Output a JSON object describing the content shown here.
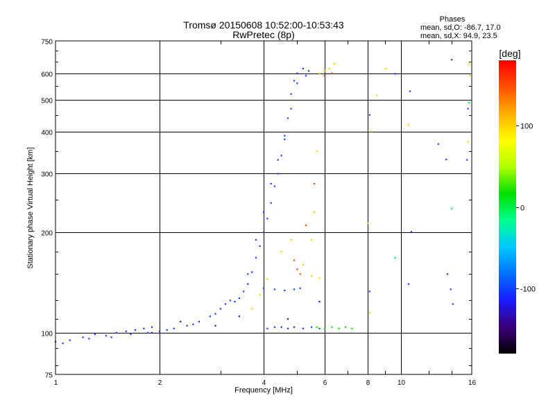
{
  "header": {
    "title_line1": "Tromsø 20150608 10:52:00-10:53:43",
    "title_line2": "RwPretec (8p)",
    "stats_heading": "Phases",
    "stats_line1": "mean, sd,O: -86.7, 17.0",
    "stats_line2": "mean, sd,X: 94.9, 23.5"
  },
  "colorbar": {
    "label": "[deg]",
    "range": [
      -180,
      180
    ],
    "ticks": [
      {
        "value": 100,
        "label": "100"
      },
      {
        "value": 0,
        "label": "0"
      },
      {
        "value": -100,
        "label": "-100"
      }
    ],
    "colors": [
      "#000000",
      "#3a007a",
      "#1a1aff",
      "#0070ff",
      "#00c8ff",
      "#00ff90",
      "#00e000",
      "#b0ff00",
      "#ffff00",
      "#ffb000",
      "#ff5000",
      "#ff0000"
    ]
  },
  "chart_data": {
    "type": "scatter",
    "title": "Tromsø 20150608 10:52:00-10:53:43",
    "subtitle": "RwPretec (8p)",
    "xlabel": "Frequency [MHz]",
    "ylabel": "Stationary phase Virtual Height [km]",
    "xscale": "log",
    "yscale": "log",
    "xlim": [
      1,
      16
    ],
    "ylim": [
      75,
      750
    ],
    "x_ticks": [
      1,
      2,
      4,
      6,
      8,
      10,
      16
    ],
    "x_tick_labels": [
      "1",
      "2",
      "4",
      "6",
      "8",
      "10",
      "16"
    ],
    "y_ticks": [
      75,
      100,
      200,
      300,
      400,
      500,
      600,
      750
    ],
    "y_tick_labels": [
      "75",
      "100",
      "200",
      "300",
      "400",
      "500",
      "600",
      "750"
    ],
    "grid": true,
    "color_by": "phase",
    "traces": [
      {
        "name": "",
        "phase": -100,
        "points": [
          [
            1.0,
            94
          ],
          [
            1.1,
            95
          ],
          [
            1.2,
            97
          ],
          [
            1.3,
            99
          ],
          [
            1.4,
            98
          ],
          [
            1.5,
            100
          ],
          [
            1.6,
            101
          ],
          [
            1.7,
            102
          ],
          [
            1.8,
            103
          ],
          [
            1.9,
            104
          ],
          [
            2.0,
            101
          ],
          [
            2.2,
            103
          ],
          [
            2.4,
            105
          ],
          [
            2.6,
            108
          ],
          [
            2.8,
            112
          ],
          [
            3.0,
            118
          ],
          [
            3.1,
            122
          ],
          [
            3.2,
            125
          ],
          [
            3.4,
            127
          ],
          [
            3.5,
            133
          ],
          [
            3.6,
            140
          ],
          [
            3.7,
            152
          ],
          [
            3.8,
            168
          ],
          [
            3.9,
            182
          ],
          [
            4.0,
            200
          ],
          [
            4.1,
            220
          ],
          [
            4.2,
            245
          ],
          [
            4.3,
            275
          ],
          [
            4.4,
            300
          ],
          [
            4.5,
            340
          ],
          [
            4.6,
            390
          ],
          [
            4.7,
            440
          ],
          [
            4.8,
            520
          ],
          [
            4.9,
            570
          ],
          [
            5.0,
            600
          ],
          [
            5.2,
            620
          ],
          [
            5.4,
            610
          ]
        ]
      },
      {
        "name": "",
        "phase": -100,
        "points": [
          [
            1.05,
            93
          ],
          [
            1.25,
            96
          ],
          [
            1.45,
            97
          ],
          [
            1.65,
            99
          ],
          [
            1.85,
            100
          ],
          [
            2.1,
            102
          ],
          [
            2.5,
            106
          ],
          [
            2.9,
            114
          ],
          [
            3.3,
            124
          ],
          [
            3.6,
            150
          ],
          [
            3.8,
            190
          ],
          [
            4.0,
            230
          ],
          [
            4.2,
            280
          ],
          [
            4.4,
            330
          ],
          [
            4.6,
            380
          ],
          [
            4.8,
            470
          ],
          [
            5.0,
            560
          ],
          [
            5.3,
            590
          ]
        ]
      },
      {
        "name": "",
        "phase": -100,
        "points": [
          [
            4.1,
            103
          ],
          [
            4.3,
            104
          ],
          [
            4.5,
            104
          ],
          [
            4.7,
            103
          ],
          [
            4.9,
            104
          ],
          [
            5.2,
            103
          ],
          [
            5.5,
            104
          ],
          [
            5.8,
            103
          ]
        ]
      },
      {
        "name": "",
        "phase": -100,
        "points": [
          [
            4.0,
            136
          ],
          [
            4.3,
            135
          ],
          [
            4.6,
            134
          ],
          [
            4.9,
            135
          ],
          [
            5.1,
            136
          ]
        ]
      },
      {
        "name": "",
        "phase": 100,
        "points": [
          [
            3.7,
            118
          ],
          [
            3.9,
            130
          ],
          [
            4.1,
            145
          ],
          [
            4.5,
            175
          ],
          [
            4.8,
            190
          ],
          [
            5.2,
            160
          ],
          [
            5.5,
            148
          ],
          [
            5.8,
            146
          ],
          [
            5.5,
            190
          ],
          [
            5.6,
            230
          ],
          [
            5.7,
            350
          ],
          [
            5.8,
            600
          ],
          [
            6.0,
            610
          ],
          [
            6.2,
            620
          ],
          [
            6.4,
            640
          ]
        ]
      },
      {
        "name": "",
        "phase": 150,
        "points": [
          [
            4.9,
            165
          ],
          [
            5.1,
            150
          ],
          [
            5.0,
            155
          ],
          [
            5.3,
            210
          ],
          [
            5.6,
            280
          ],
          [
            6.0,
            590
          ],
          [
            6.3,
            600
          ]
        ]
      },
      {
        "name": "",
        "phase": 20,
        "points": [
          [
            5.7,
            104
          ],
          [
            6.0,
            103
          ],
          [
            6.3,
            104
          ],
          [
            6.6,
            103
          ],
          [
            6.9,
            104
          ],
          [
            7.2,
            103
          ]
        ]
      },
      {
        "name": "",
        "phase": 100,
        "points": [
          [
            8.1,
            115
          ],
          [
            8.0,
            213
          ],
          [
            8.2,
            402
          ],
          [
            8.5,
            515
          ],
          [
            9.0,
            620
          ],
          [
            10.5,
            420
          ],
          [
            15.6,
            374
          ],
          [
            15.8,
            590
          ],
          [
            15.7,
            640
          ]
        ]
      },
      {
        "name": "",
        "phase": -100,
        "points": [
          [
            8.1,
            133
          ],
          [
            8.1,
            450
          ],
          [
            9.6,
            598
          ],
          [
            10.6,
            530
          ],
          [
            10.5,
            140
          ],
          [
            10.7,
            201
          ],
          [
            12.8,
            368
          ],
          [
            13.5,
            331
          ],
          [
            14.0,
            659
          ],
          [
            13.6,
            150
          ],
          [
            13.9,
            135
          ],
          [
            14.1,
            122
          ],
          [
            15.6,
            470
          ],
          [
            15.5,
            330
          ]
        ]
      },
      {
        "name": "",
        "phase": 0,
        "points": [
          [
            14.0,
            236
          ],
          [
            15.7,
            490
          ],
          [
            9.6,
            168
          ]
        ]
      },
      {
        "name": "",
        "phase": -130,
        "points": [
          [
            1.9,
            100
          ],
          [
            2.3,
            108
          ],
          [
            2.9,
            105
          ],
          [
            3.4,
            112
          ],
          [
            4.7,
            110
          ],
          [
            5.8,
            124
          ]
        ]
      }
    ]
  }
}
